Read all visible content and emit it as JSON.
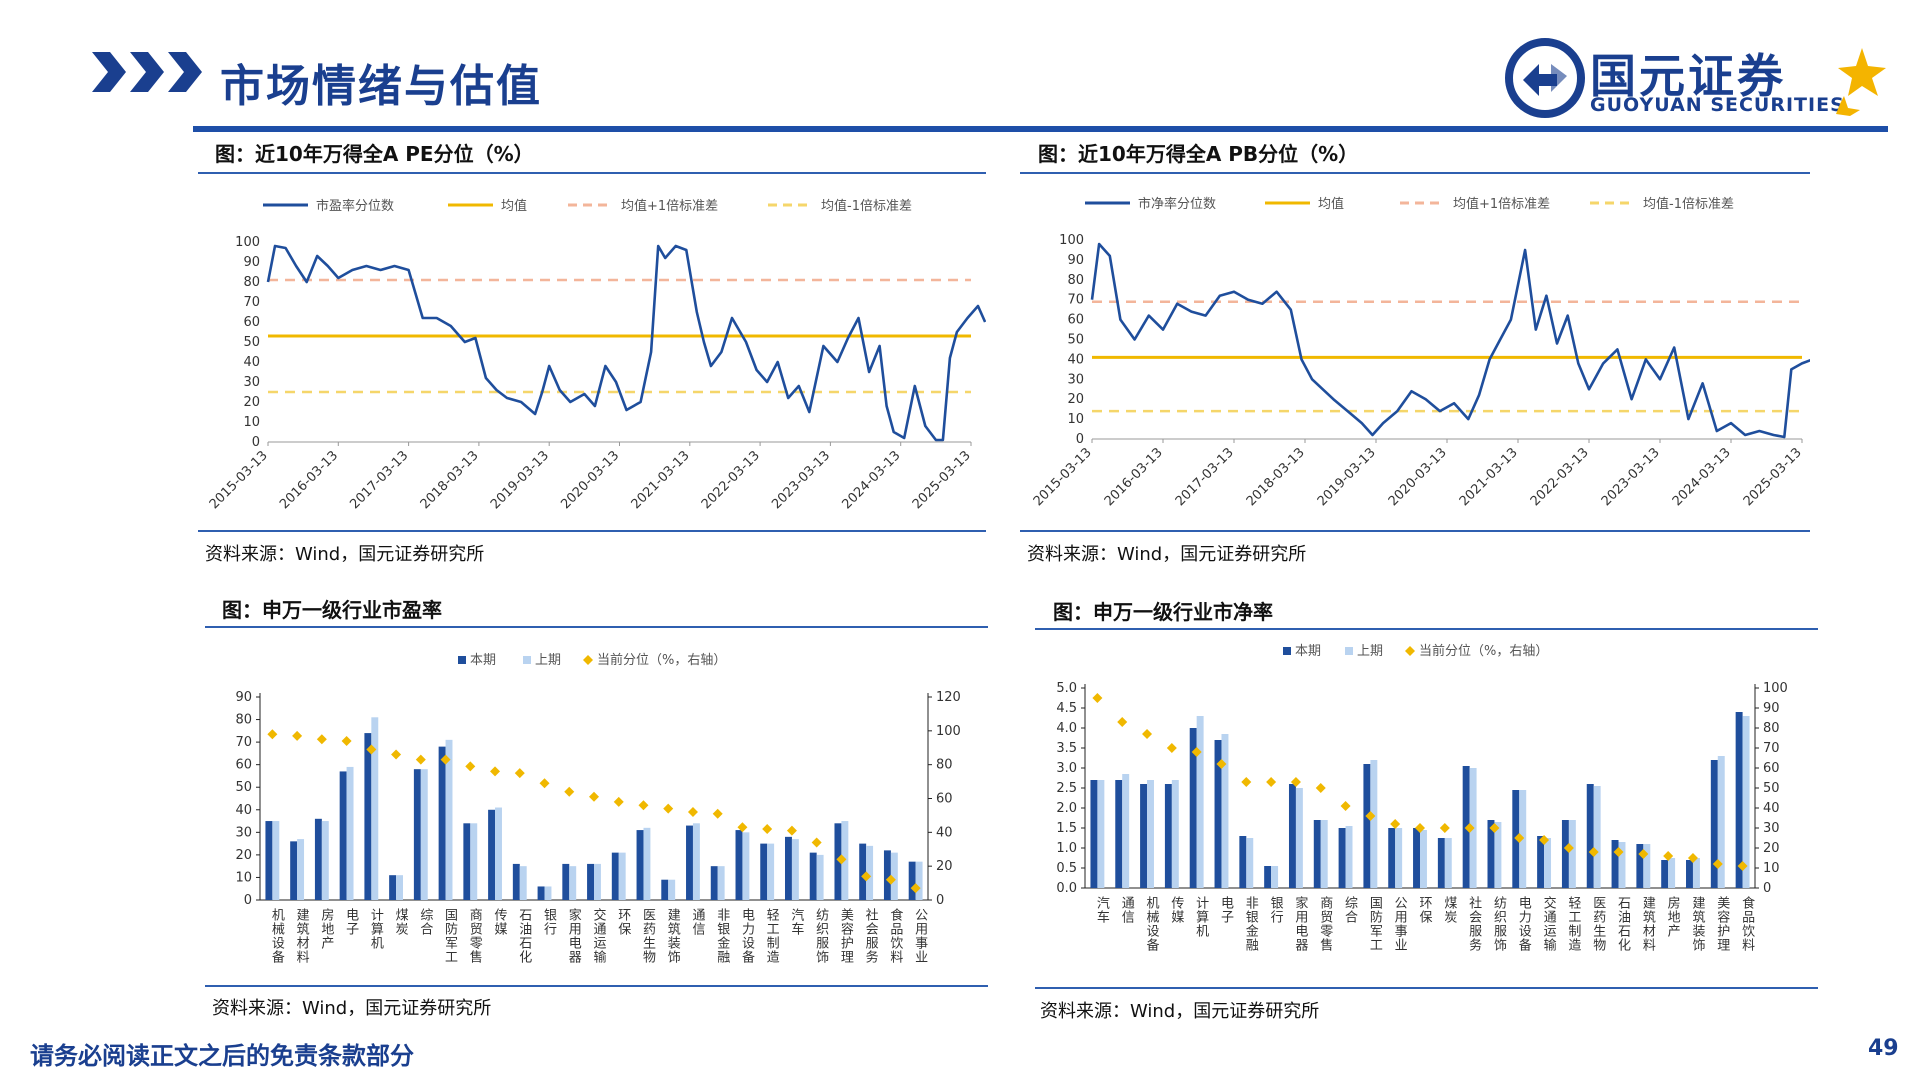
{
  "header": {
    "title": "市场情绪与估值",
    "logo_cn": "国元证券",
    "logo_en": "GUOYUAN SECURITIES"
  },
  "footer": {
    "note": "请务必阅读正文之后的免责条款部分",
    "page_number": "49"
  },
  "colors": {
    "brand": "#1a3f8f",
    "rule": "#1e4fa8",
    "main_line": "#1f4e9c",
    "mean": "#f0b800",
    "upper": "#f3b59a",
    "lower": "#f5d66a",
    "bar_current": "#1f4e9c",
    "bar_prev": "#b9d3f0",
    "marker": "#f0b800",
    "logo_accent": "#f4b400"
  },
  "panels": {
    "pe_percentile": {
      "title": "图：近10年万得全A PE分位（%）",
      "source": "资料来源：Wind，国元证券研究所"
    },
    "pb_percentile": {
      "title": "图：近10年万得全A PB分位（%）",
      "source": "资料来源：Wind，国元证券研究所"
    },
    "industry_pe": {
      "title": "图：申万一级行业市盈率",
      "source": "资料来源：Wind，国元证券研究所"
    },
    "industry_pb": {
      "title": "图：申万一级行业市净率",
      "source": "资料来源：Wind，国元证券研究所"
    }
  },
  "chart_data": [
    {
      "type": "line",
      "title": "",
      "legend": [
        "市盈率分位数",
        "均值",
        "均值+1倍标准差",
        "均值-1倍标准差"
      ],
      "x_ticks": [
        "2015-03-13",
        "2016-03-13",
        "2017-03-13",
        "2018-03-13",
        "2019-03-13",
        "2020-03-13",
        "2021-03-13",
        "2022-03-13",
        "2023-03-13",
        "2024-03-13",
        "2025-03-13"
      ],
      "ylim": [
        0,
        100
      ],
      "y_ticks": [
        0,
        10,
        20,
        30,
        40,
        50,
        60,
        70,
        80,
        90,
        100
      ],
      "mean": 53,
      "mean_plus_1sd": 81,
      "mean_minus_1sd": 25,
      "series": [
        {
          "name": "市盈率分位数",
          "x": [
            2015.2,
            2015.3,
            2015.45,
            2015.6,
            2015.75,
            2015.9,
            2016.05,
            2016.2,
            2016.4,
            2016.6,
            2016.8,
            2017.0,
            2017.2,
            2017.4,
            2017.6,
            2017.8,
            2018.0,
            2018.15,
            2018.3,
            2018.45,
            2018.6,
            2018.8,
            2019.0,
            2019.1,
            2019.2,
            2019.35,
            2019.5,
            2019.7,
            2019.85,
            2020.0,
            2020.15,
            2020.3,
            2020.5,
            2020.65,
            2020.75,
            2020.85,
            2021.0,
            2021.15,
            2021.3,
            2021.4,
            2021.5,
            2021.65,
            2021.8,
            2022.0,
            2022.15,
            2022.3,
            2022.45,
            2022.6,
            2022.75,
            2022.9,
            2023.1,
            2023.3,
            2023.45,
            2023.6,
            2023.75,
            2023.9,
            2024.0,
            2024.1,
            2024.25,
            2024.4,
            2024.55,
            2024.7,
            2024.8,
            2024.9,
            2025.0,
            2025.15,
            2025.3,
            2025.4
          ],
          "values": [
            80,
            98,
            97,
            88,
            80,
            93,
            88,
            82,
            86,
            88,
            86,
            88,
            86,
            62,
            62,
            58,
            50,
            52,
            32,
            26,
            22,
            20,
            14,
            25,
            38,
            26,
            20,
            24,
            18,
            38,
            30,
            16,
            20,
            45,
            98,
            92,
            98,
            96,
            65,
            50,
            38,
            45,
            62,
            50,
            36,
            30,
            40,
            22,
            28,
            15,
            48,
            40,
            52,
            62,
            35,
            48,
            18,
            5,
            2,
            28,
            8,
            1,
            1,
            42,
            55,
            62,
            68,
            60
          ]
        }
      ]
    },
    {
      "type": "line",
      "title": "",
      "legend": [
        "市净率分位数",
        "均值",
        "均值+1倍标准差",
        "均值-1倍标准差"
      ],
      "x_ticks": [
        "2015-03-13",
        "2016-03-13",
        "2017-03-13",
        "2018-03-13",
        "2019-03-13",
        "2020-03-13",
        "2021-03-13",
        "2022-03-13",
        "2023-03-13",
        "2024-03-13",
        "2025-03-13"
      ],
      "ylim": [
        0,
        100
      ],
      "y_ticks": [
        0,
        10,
        20,
        30,
        40,
        50,
        60,
        70,
        80,
        90,
        100
      ],
      "mean": 41,
      "mean_plus_1sd": 69,
      "mean_minus_1sd": 14,
      "series": [
        {
          "name": "市净率分位数",
          "x": [
            2015.2,
            2015.3,
            2015.45,
            2015.6,
            2015.8,
            2016.0,
            2016.2,
            2016.4,
            2016.6,
            2016.8,
            2017.0,
            2017.2,
            2017.4,
            2017.6,
            2017.8,
            2018.0,
            2018.15,
            2018.3,
            2018.45,
            2018.6,
            2018.8,
            2019.0,
            2019.15,
            2019.3,
            2019.5,
            2019.7,
            2019.9,
            2020.1,
            2020.3,
            2020.5,
            2020.65,
            2020.8,
            2020.95,
            2021.1,
            2021.3,
            2021.45,
            2021.6,
            2021.75,
            2021.9,
            2022.05,
            2022.2,
            2022.4,
            2022.6,
            2022.8,
            2023.0,
            2023.2,
            2023.4,
            2023.6,
            2023.8,
            2024.0,
            2024.2,
            2024.4,
            2024.6,
            2024.8,
            2024.95,
            2025.05,
            2025.2,
            2025.35,
            2025.4
          ],
          "values": [
            70,
            98,
            92,
            60,
            50,
            62,
            55,
            68,
            64,
            62,
            72,
            74,
            70,
            68,
            74,
            65,
            40,
            30,
            25,
            20,
            14,
            8,
            2,
            8,
            14,
            24,
            20,
            14,
            18,
            10,
            22,
            40,
            50,
            60,
            95,
            55,
            72,
            48,
            62,
            38,
            25,
            38,
            45,
            20,
            40,
            30,
            46,
            10,
            28,
            4,
            8,
            2,
            4,
            2,
            1,
            35,
            38,
            40,
            42
          ]
        }
      ]
    },
    {
      "type": "bar",
      "title": "",
      "legend": [
        "本期",
        "上期",
        "当前分位（%，右轴）"
      ],
      "categories": [
        "机械设备",
        "建筑材料",
        "房地产",
        "电子",
        "计算机",
        "煤炭",
        "综合",
        "国防军工",
        "商贸零售",
        "传媒",
        "石油石化",
        "银行",
        "家用电器",
        "交通运输",
        "环保",
        "医药生物",
        "建筑装饰",
        "通信",
        "非银金融",
        "电力设备",
        "轻工制造",
        "汽车",
        "纺织服饰",
        "美容护理",
        "社会服务",
        "食品饮料",
        "公用事业"
      ],
      "ylim": [
        0,
        90
      ],
      "y_ticks": [
        0,
        10,
        20,
        30,
        40,
        50,
        60,
        70,
        80,
        90
      ],
      "y2lim": [
        0,
        120
      ],
      "y2_ticks": [
        0,
        20,
        40,
        60,
        80,
        100,
        120
      ],
      "series": [
        {
          "name": "本期",
          "values": [
            35,
            26,
            36,
            57,
            74,
            11,
            58,
            68,
            34,
            40,
            16,
            6,
            16,
            16,
            21,
            31,
            9,
            33,
            15,
            31,
            25,
            28,
            21,
            34,
            25,
            22,
            17
          ]
        },
        {
          "name": "上期",
          "values": [
            35,
            27,
            35,
            59,
            81,
            11,
            58,
            71,
            34,
            41,
            15,
            6,
            15,
            16,
            21,
            32,
            9,
            34,
            15,
            30,
            25,
            27,
            20,
            35,
            24,
            21,
            17
          ]
        },
        {
          "name": "当前分位（%，右轴）",
          "axis": "right",
          "values": [
            98,
            97,
            95,
            94,
            89,
            86,
            83,
            83,
            79,
            76,
            75,
            69,
            64,
            61,
            58,
            56,
            54,
            52,
            51,
            43,
            42,
            41,
            34,
            24,
            14,
            12,
            7
          ]
        }
      ]
    },
    {
      "type": "bar",
      "title": "",
      "legend": [
        "本期",
        "上期",
        "当前分位（%，右轴）"
      ],
      "categories": [
        "汽车",
        "通信",
        "机械设备",
        "传媒",
        "计算机",
        "电子",
        "非银金融",
        "银行",
        "家用电器",
        "商贸零售",
        "综合",
        "国防军工",
        "公用事业",
        "环保",
        "煤炭",
        "社会服务",
        "纺织服饰",
        "电力设备",
        "交通运输",
        "轻工制造",
        "医药生物",
        "石油石化",
        "建筑材料",
        "房地产",
        "建筑装饰",
        "美容护理",
        "食品饮料"
      ],
      "ylim": [
        0,
        5.0
      ],
      "y_ticks": [
        "0.0",
        "0.5",
        "1.0",
        "1.5",
        "2.0",
        "2.5",
        "3.0",
        "3.5",
        "4.0",
        "4.5",
        "5.0"
      ],
      "y2lim": [
        0,
        100
      ],
      "y2_ticks": [
        0,
        10,
        20,
        30,
        40,
        50,
        60,
        70,
        80,
        90,
        100
      ],
      "series": [
        {
          "name": "本期",
          "values": [
            2.7,
            2.7,
            2.6,
            2.6,
            4.0,
            3.7,
            1.3,
            0.55,
            2.6,
            1.7,
            1.5,
            3.1,
            1.5,
            1.5,
            1.25,
            3.05,
            1.7,
            2.45,
            1.3,
            1.7,
            2.6,
            1.2,
            1.1,
            0.7,
            0.7,
            3.2,
            4.4
          ]
        },
        {
          "name": "上期",
          "values": [
            2.7,
            2.85,
            2.7,
            2.7,
            4.3,
            3.85,
            1.25,
            0.55,
            2.5,
            1.7,
            1.55,
            3.2,
            1.5,
            1.45,
            1.25,
            3.0,
            1.65,
            2.45,
            1.25,
            1.7,
            2.55,
            1.15,
            1.1,
            0.75,
            0.75,
            3.3,
            4.3
          ]
        },
        {
          "name": "当前分位（%，右轴）",
          "axis": "right",
          "values": [
            95,
            83,
            77,
            70,
            68,
            62,
            53,
            53,
            53,
            50,
            41,
            36,
            32,
            30,
            30,
            30,
            30,
            25,
            24,
            20,
            18,
            18,
            17,
            16,
            15,
            12,
            11
          ]
        }
      ]
    }
  ]
}
